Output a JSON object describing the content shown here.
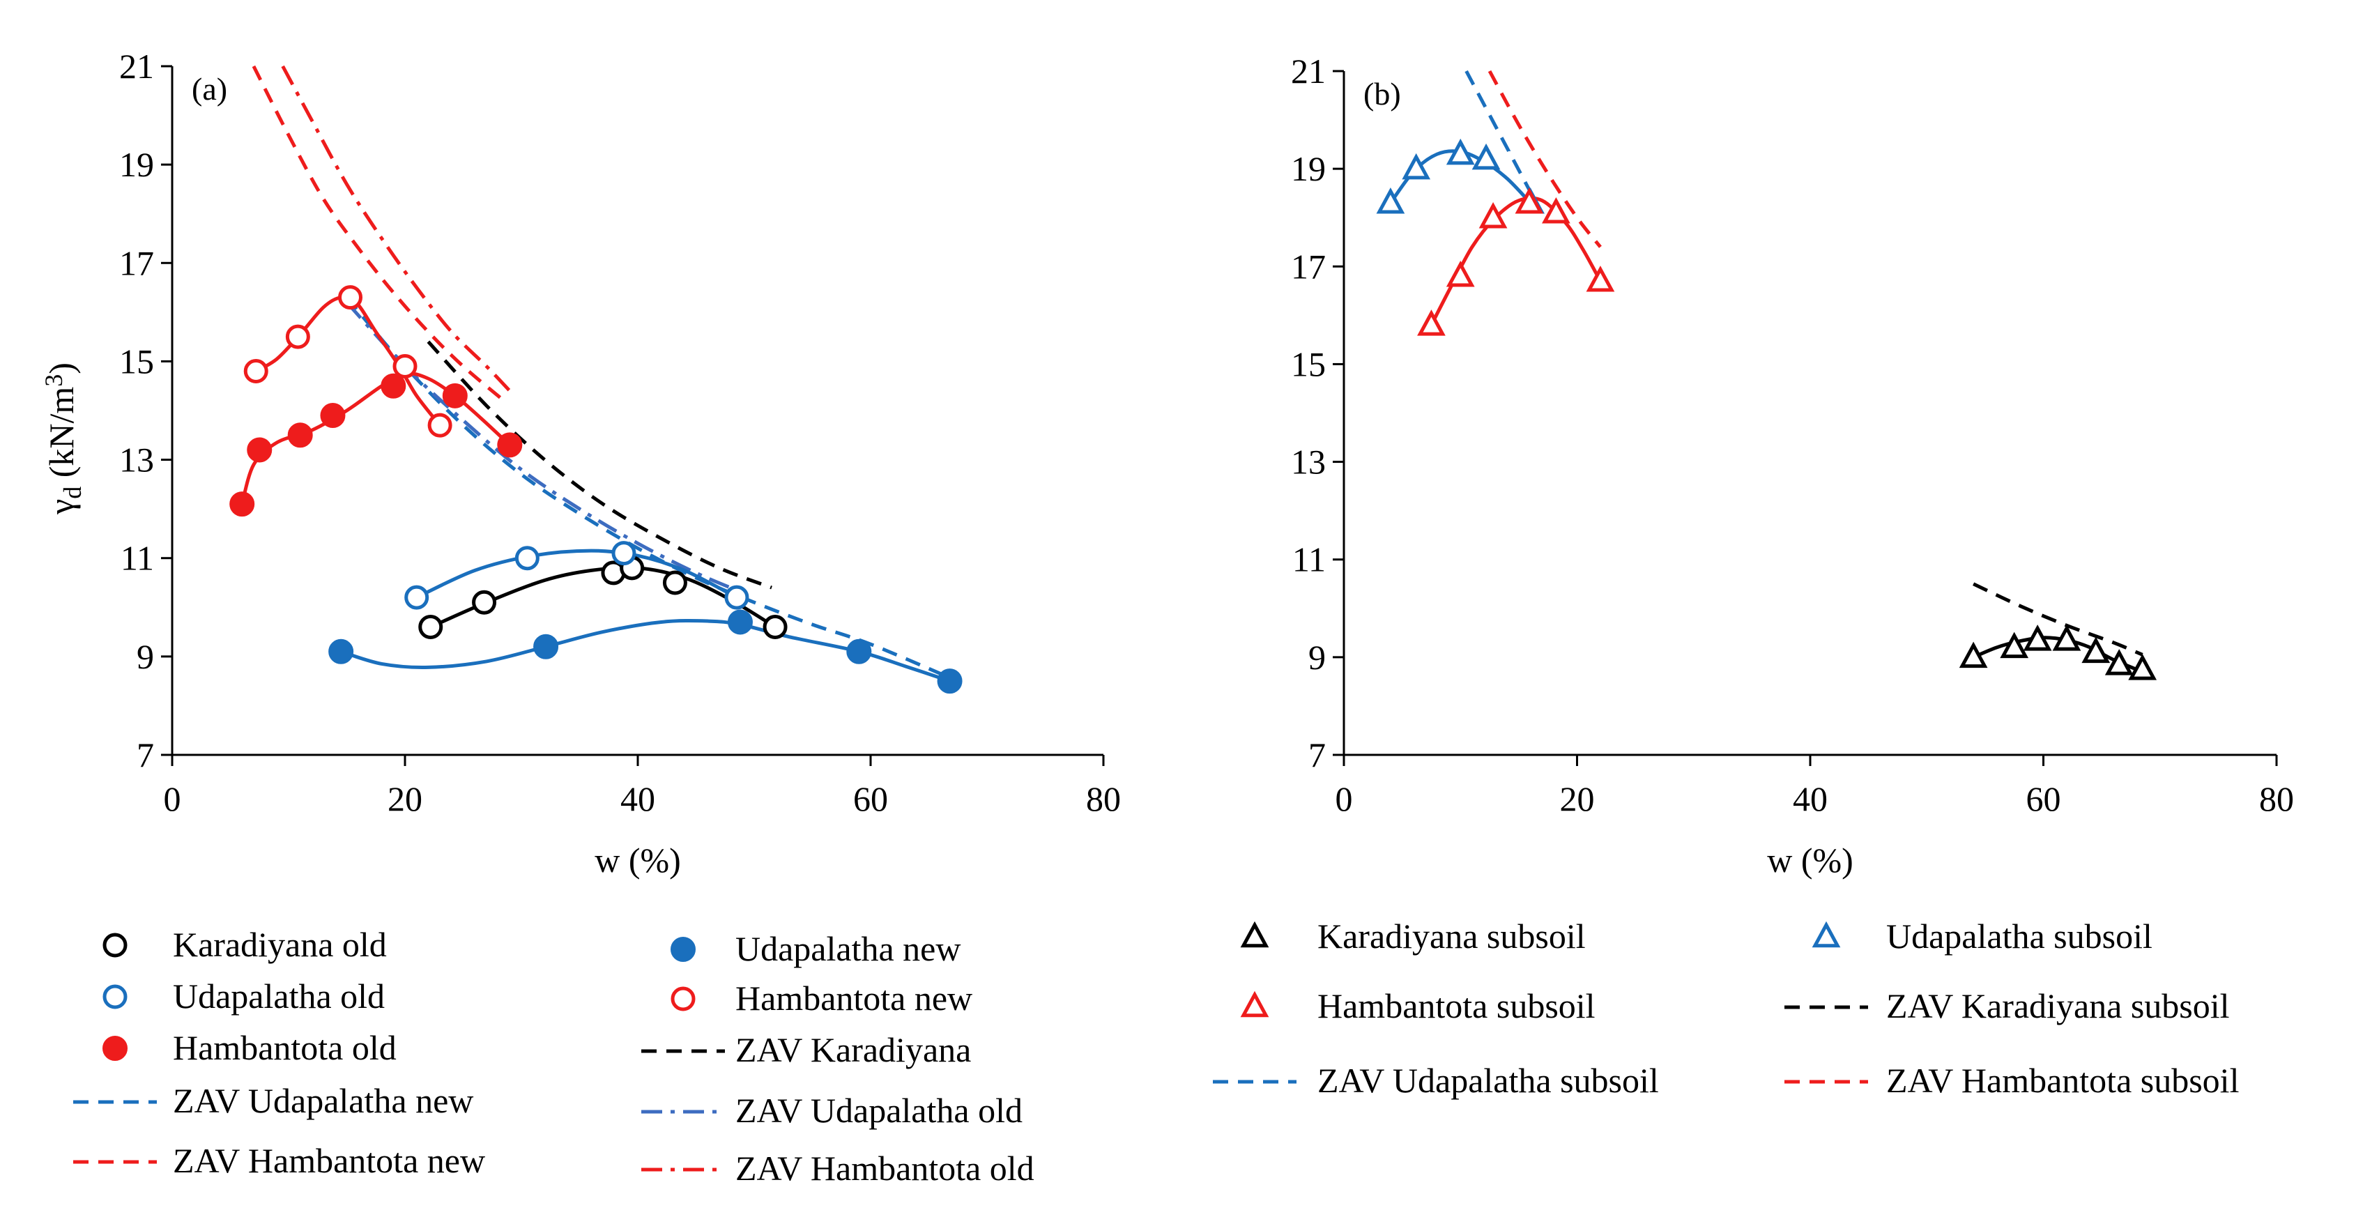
{
  "colors": {
    "black": "#000000",
    "blue": "#1a6fbd",
    "blue_mid": "#3d6cc0",
    "red": "#ee1c1c",
    "axis": "#000000"
  },
  "chart_data": [
    {
      "type": "scatter",
      "panel_label": "(a)",
      "xlabel": "w (%)",
      "ylabel": "γd (kN/m3)",
      "ylabel_main": "γ",
      "ylabel_sub": "d",
      "ylabel_unit": " (kN/m",
      "ylabel_sup": "3",
      "ylabel_close": ")",
      "xlim": [
        0,
        80
      ],
      "ylim": [
        7,
        21
      ],
      "xticks": [
        0,
        20,
        40,
        60,
        80
      ],
      "yticks": [
        7,
        9,
        11,
        13,
        15,
        17,
        19,
        21
      ],
      "xtick_labels": [
        "0",
        "20",
        "40",
        "60",
        "80"
      ],
      "ytick_labels": [
        "7",
        "9",
        "11",
        "13",
        "15",
        "17",
        "19",
        "21"
      ],
      "grid": false,
      "series": [
        {
          "name": "Karadiyana old",
          "marker": "circle-open",
          "color": "#000000",
          "x": [
            22.2,
            26.8,
            37.9,
            39.5,
            43.2,
            51.8
          ],
          "y": [
            9.6,
            10.1,
            10.7,
            10.8,
            10.5,
            9.6
          ],
          "fit_x": [
            22.2,
            27,
            32,
            36,
            40,
            44,
            48,
            51.8
          ],
          "fit_y": [
            9.6,
            10.1,
            10.55,
            10.75,
            10.8,
            10.6,
            10.15,
            9.6
          ]
        },
        {
          "name": "Udapalatha old",
          "marker": "circle-open",
          "color": "#1a6fbd",
          "x": [
            21,
            30.5,
            38.8,
            48.5
          ],
          "y": [
            10.2,
            11.0,
            11.1,
            10.2
          ],
          "fit_x": [
            21,
            26,
            31,
            36,
            40,
            44,
            48.5
          ],
          "fit_y": [
            10.2,
            10.75,
            11.05,
            11.15,
            11.05,
            10.75,
            10.2
          ]
        },
        {
          "name": "Hambantota old",
          "marker": "circle-filled",
          "color": "#ee1c1c",
          "x": [
            6,
            7.5,
            11,
            13.8,
            19,
            24.3,
            29
          ],
          "y": [
            12.1,
            13.2,
            13.5,
            13.9,
            14.5,
            14.3,
            13.3
          ],
          "fit_x": [
            6,
            7,
            9,
            12,
            15,
            18,
            20,
            22,
            24.3,
            26.5,
            29
          ],
          "fit_y": [
            12.1,
            12.9,
            13.35,
            13.6,
            14.0,
            14.5,
            14.75,
            14.65,
            14.3,
            13.85,
            13.3
          ]
        },
        {
          "name": "Udapalatha new",
          "marker": "circle-filled",
          "color": "#1a6fbd",
          "x": [
            14.5,
            32.1,
            48.8,
            59,
            66.8
          ],
          "y": [
            9.1,
            9.2,
            9.7,
            9.1,
            8.5
          ],
          "fit_x": [
            14.5,
            18,
            22,
            27,
            32.1,
            37,
            42,
            46,
            48.8,
            53,
            59,
            63,
            66.8
          ],
          "fit_y": [
            9.1,
            8.85,
            8.78,
            8.9,
            9.2,
            9.5,
            9.7,
            9.72,
            9.65,
            9.4,
            9.1,
            8.8,
            8.5
          ]
        },
        {
          "name": "Hambantota new",
          "marker": "circle-open",
          "color": "#ee1c1c",
          "x": [
            7.2,
            10.8,
            15.3,
            20,
            23
          ],
          "y": [
            14.8,
            15.5,
            16.3,
            14.9,
            13.7
          ],
          "fit_x": [
            7.2,
            9,
            11,
            13,
            14.5,
            15.8,
            17.5,
            19.5,
            21,
            23
          ],
          "fit_y": [
            14.8,
            15.05,
            15.55,
            16.1,
            16.3,
            16.2,
            15.6,
            14.9,
            14.3,
            13.7
          ]
        },
        {
          "name": "ZAV Karadiyana",
          "marker": "line-dash",
          "color": "#000000",
          "x": [
            22,
            27,
            32,
            37,
            42,
            47,
            51.5
          ],
          "y": [
            15.4,
            14.1,
            13.0,
            12.1,
            11.4,
            10.8,
            10.4
          ]
        },
        {
          "name": "ZAV Udapalatha new",
          "marker": "line-dash",
          "color": "#1a6fbd",
          "x": [
            15,
            20,
            25,
            30,
            35,
            40,
            45,
            50,
            55,
            60,
            67
          ],
          "y": [
            16.3,
            14.9,
            13.7,
            12.7,
            11.9,
            11.2,
            10.6,
            10.1,
            9.65,
            9.25,
            8.55
          ]
        },
        {
          "name": "ZAV Udapalatha old",
          "marker": "line-dashdot",
          "color": "#3d6cc0",
          "x": [
            15,
            20,
            25,
            30,
            35,
            40,
            45,
            49
          ],
          "y": [
            16.2,
            14.9,
            13.8,
            12.8,
            12.0,
            11.3,
            10.7,
            10.3
          ]
        },
        {
          "name": "ZAV Hambantota new",
          "marker": "line-dash",
          "color": "#ee1c1c",
          "x": [
            7,
            10,
            13,
            16,
            19,
            22,
            25,
            28.5
          ],
          "y": [
            21.0,
            19.6,
            18.3,
            17.3,
            16.4,
            15.6,
            14.9,
            14.2
          ]
        },
        {
          "name": "ZAV Hambantota old",
          "marker": "line-dashdot",
          "color": "#ee1c1c",
          "x": [
            9.5,
            12,
            15,
            18,
            21,
            24,
            27,
            29
          ],
          "y": [
            21.0,
            19.9,
            18.6,
            17.5,
            16.5,
            15.6,
            14.9,
            14.4
          ]
        }
      ],
      "legend": {
        "placement": "below",
        "entries": [
          "Karadiyana old",
          "Udapalatha new",
          "Udapalatha old",
          "Hambantota new",
          "Hambantota old",
          "ZAV Karadiyana",
          "ZAV Udapalatha new",
          "ZAV Udapalatha old",
          "ZAV Hambantota new",
          "ZAV Hambantota old"
        ]
      }
    },
    {
      "type": "scatter",
      "panel_label": "(b)",
      "xlabel": "w (%)",
      "ylabel": "",
      "xlim": [
        0,
        80
      ],
      "ylim": [
        7,
        21
      ],
      "xticks": [
        0,
        20,
        40,
        60,
        80
      ],
      "yticks": [
        7,
        9,
        11,
        13,
        15,
        17,
        19,
        21
      ],
      "xtick_labels": [
        "0",
        "20",
        "40",
        "60",
        "80"
      ],
      "ytick_labels": [
        "7",
        "9",
        "11",
        "13",
        "15",
        "17",
        "19",
        "21"
      ],
      "grid": false,
      "series": [
        {
          "name": "Karadiyana subsoil",
          "marker": "triangle-open",
          "color": "#000000",
          "x": [
            54,
            57.5,
            59.5,
            62,
            64.5,
            66.5,
            68.5
          ],
          "y": [
            9.0,
            9.2,
            9.35,
            9.35,
            9.1,
            8.85,
            8.75
          ],
          "fit_x": [
            54,
            56,
            58,
            60,
            62,
            64,
            66,
            68.5
          ],
          "fit_y": [
            9.0,
            9.2,
            9.33,
            9.4,
            9.35,
            9.2,
            8.95,
            8.7
          ]
        },
        {
          "name": "Udapalatha subsoil",
          "marker": "triangle-open",
          "color": "#1a6fbd",
          "x": [
            4,
            6.2,
            10,
            12.2,
            16
          ],
          "y": [
            18.3,
            19.0,
            19.3,
            19.2,
            18.3
          ],
          "fit_x": [
            4,
            6,
            8,
            10,
            12,
            14,
            16
          ],
          "fit_y": [
            18.3,
            18.95,
            19.3,
            19.35,
            19.15,
            18.8,
            18.3
          ]
        },
        {
          "name": "Hambantota subsoil",
          "marker": "triangle-open",
          "color": "#ee1c1c",
          "x": [
            7.5,
            10,
            12.8,
            15.9,
            18.2,
            22
          ],
          "y": [
            15.8,
            16.8,
            18.0,
            18.3,
            18.1,
            16.7
          ],
          "fit_x": [
            7.5,
            9,
            11,
            13,
            15,
            17,
            19,
            20.5,
            22
          ],
          "fit_y": [
            15.8,
            16.5,
            17.4,
            18.0,
            18.35,
            18.35,
            17.9,
            17.35,
            16.7
          ]
        },
        {
          "name": "ZAV Karadiyana subsoil",
          "marker": "line-dash",
          "color": "#000000",
          "x": [
            54,
            58,
            62,
            66,
            68.5
          ],
          "y": [
            10.5,
            10.05,
            9.65,
            9.3,
            9.05
          ]
        },
        {
          "name": "ZAV Udapalatha subsoil",
          "marker": "line-dash",
          "color": "#1a6fbd",
          "x": [
            10.5,
            12.5,
            14.5,
            16.5
          ],
          "y": [
            21.0,
            20.1,
            19.2,
            18.3
          ]
        },
        {
          "name": "ZAV Hambantota subsoil",
          "marker": "line-dash",
          "color": "#ee1c1c",
          "x": [
            12.5,
            15,
            17.5,
            20,
            22
          ],
          "y": [
            21.0,
            19.9,
            18.9,
            18.0,
            17.4
          ]
        }
      ],
      "legend": {
        "placement": "below",
        "entries": [
          "Karadiyana subsoil",
          "Udapalatha subsoil",
          "Hambantota subsoil",
          "ZAV Karadiyana subsoil",
          "ZAV Udapalatha subsoil",
          "ZAV Hambantota subsoil"
        ]
      }
    }
  ]
}
